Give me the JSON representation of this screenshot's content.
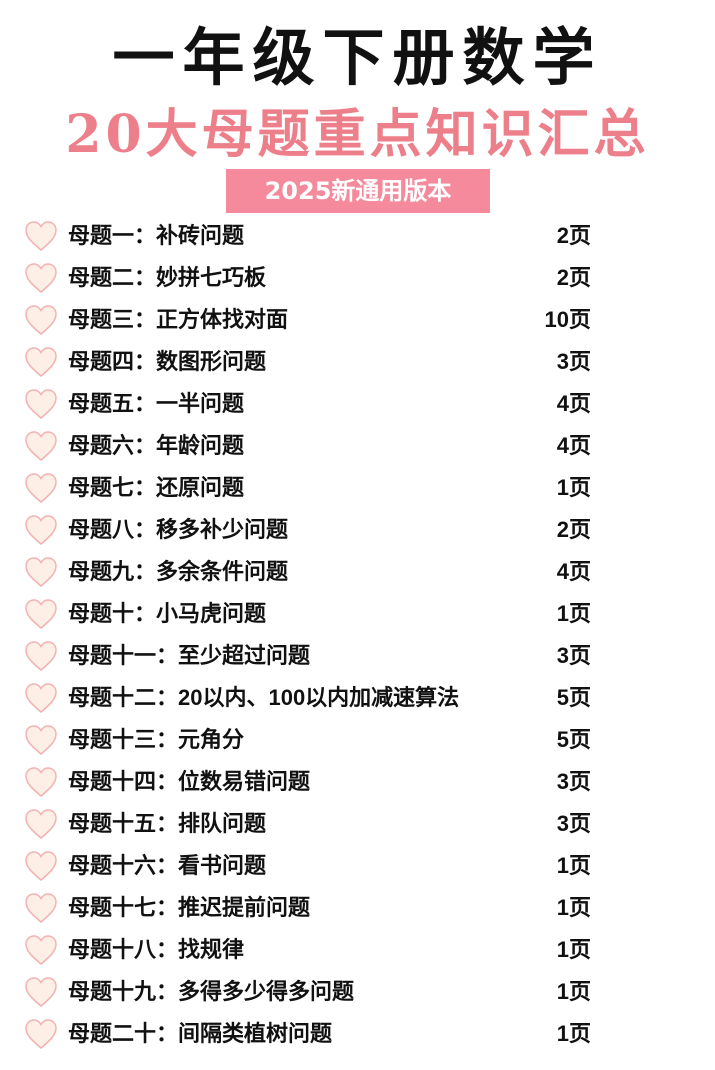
{
  "title": "一年级下册数学",
  "subtitle": "20大母题重点知识汇总",
  "badge": "2025新通用版本",
  "colors": {
    "accent": "#ec7f8a",
    "badge_bg": "#f48a9c",
    "heart_fill": "#fdeee6",
    "heart_stroke": "#f2b3b0"
  },
  "list_icon": "heart-icon",
  "items": [
    {
      "label": "母题一：补砖问题",
      "pages": "2页"
    },
    {
      "label": "母题二：妙拼七巧板",
      "pages": "2页"
    },
    {
      "label": "母题三：正方体找对面",
      "pages": "10页"
    },
    {
      "label": "母题四：数图形问题",
      "pages": "3页"
    },
    {
      "label": "母题五：一半问题",
      "pages": "4页"
    },
    {
      "label": "母题六：年龄问题",
      "pages": "4页"
    },
    {
      "label": "母题七：还原问题",
      "pages": "1页"
    },
    {
      "label": "母题八：移多补少问题",
      "pages": "2页"
    },
    {
      "label": "母题九：多余条件问题",
      "pages": "4页"
    },
    {
      "label": "母题十：小马虎问题",
      "pages": "1页"
    },
    {
      "label": "母题十一：至少超过问题",
      "pages": "3页"
    },
    {
      "label": "母题十二：20以内、100以内加减速算法",
      "pages": "5页"
    },
    {
      "label": "母题十三：元角分",
      "pages": "5页"
    },
    {
      "label": "母题十四：位数易错问题",
      "pages": "3页"
    },
    {
      "label": "母题十五：排队问题",
      "pages": "3页"
    },
    {
      "label": "母题十六：看书问题",
      "pages": "1页"
    },
    {
      "label": "母题十七：推迟提前问题",
      "pages": "1页"
    },
    {
      "label": "母题十八：找规律",
      "pages": "1页"
    },
    {
      "label": "母题十九：多得多少得多问题",
      "pages": "1页"
    },
    {
      "label": "母题二十：间隔类植树问题",
      "pages": "1页"
    }
  ]
}
